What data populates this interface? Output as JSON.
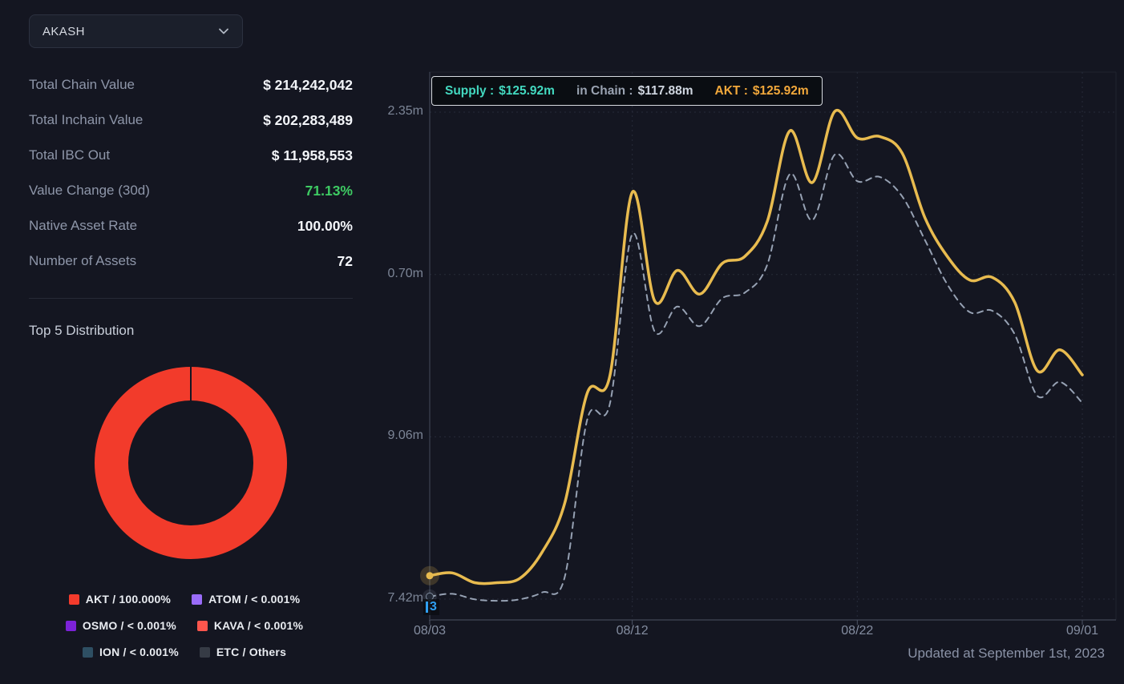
{
  "asset_selector": {
    "selected": "AKASH"
  },
  "stats": [
    {
      "label": "Total Chain Value",
      "value": "$ 214,242,042",
      "value_color": "#f3f5f9"
    },
    {
      "label": "Total Inchain Value",
      "value": "$ 202,283,489",
      "value_color": "#f3f5f9"
    },
    {
      "label": "Total IBC Out",
      "value": "$ 11,958,553",
      "value_color": "#f3f5f9"
    },
    {
      "label": "Value Change (30d)",
      "value": "71.13%",
      "value_color": "#3ecb63"
    },
    {
      "label": "Native Asset Rate",
      "value": "100.00%",
      "value_color": "#f3f5f9"
    },
    {
      "label": "Number of Assets",
      "value": "72",
      "value_color": "#f3f5f9"
    }
  ],
  "distribution": {
    "title": "Top 5 Distribution",
    "donut_color": "#f23b2b",
    "legend": [
      {
        "label": "AKT / 100.000%",
        "color": "#f43b2c"
      },
      {
        "label": "ATOM / < 0.001%",
        "color": "#9a6cf9"
      },
      {
        "label": "OSMO / < 0.001%",
        "color": "#7c22d8"
      },
      {
        "label": "KAVA / < 0.001%",
        "color": "#fd564d"
      },
      {
        "label": "ION / < 0.001%",
        "color": "#2e4f63"
      },
      {
        "label": "ETC / Others",
        "color": "#363b45"
      }
    ]
  },
  "tooltip": {
    "items": [
      {
        "label": "Supply :",
        "value": "$125.92m",
        "label_color": "#43d9c0",
        "value_color": "#43d9c0"
      },
      {
        "label": "in Chain :",
        "value": "$117.88m",
        "label_color": "#9aa3b2",
        "value_color": "#cfd6e0"
      },
      {
        "label": "AKT :",
        "value": "$125.92m",
        "label_color": "#f2a83b",
        "value_color": "#f2a83b"
      }
    ]
  },
  "chart_data": {
    "type": "line",
    "x": [
      "08/03",
      "08/04",
      "08/05",
      "08/06",
      "08/07",
      "08/08",
      "08/09",
      "08/10",
      "08/11",
      "08/12",
      "08/13",
      "08/14",
      "08/15",
      "08/16",
      "08/17",
      "08/18",
      "08/19",
      "08/20",
      "08/21",
      "08/22",
      "08/23",
      "08/24",
      "08/25",
      "08/26",
      "08/27",
      "08/28",
      "08/29",
      "08/30",
      "08/31",
      "09/01"
    ],
    "x_tick_labels": [
      "08/03",
      "08/12",
      "08/22",
      "09/01"
    ],
    "x_tick_indices": [
      0,
      9,
      19,
      29
    ],
    "y_ticks": [
      {
        "value": 122.35,
        "label": "2.35m"
      },
      {
        "value": 110.7,
        "label": "0.70m"
      },
      {
        "value": 99.06,
        "label": "9.06m"
      },
      {
        "value": 87.42,
        "label": "7.42m"
      }
    ],
    "ylim": [
      87.42,
      122.35
    ],
    "unit": "$m",
    "grid": "dotted",
    "series": [
      {
        "name": "Supply / AKT",
        "color": "#e8bb4f",
        "dash": "solid",
        "values": [
          89.1,
          89.3,
          88.6,
          88.6,
          88.9,
          90.8,
          94.3,
          102.2,
          103.4,
          116.6,
          108.8,
          111.0,
          109.3,
          111.5,
          112.0,
          114.5,
          121.0,
          117.3,
          122.4,
          120.5,
          120.6,
          119.4,
          114.8,
          112.0,
          110.3,
          110.5,
          108.7,
          103.8,
          105.3,
          103.5
        ]
      },
      {
        "name": "in Chain",
        "color": "#96a1b3",
        "dash": "dashed",
        "values": [
          87.6,
          87.8,
          87.4,
          87.3,
          87.4,
          87.9,
          89.0,
          100.3,
          101.4,
          113.6,
          106.6,
          108.4,
          107.0,
          109.0,
          109.4,
          111.4,
          117.9,
          114.6,
          119.3,
          117.4,
          117.7,
          116.3,
          113.2,
          110.0,
          108.0,
          108.1,
          106.4,
          102.0,
          103.0,
          101.5
        ]
      }
    ],
    "axis_pointer": {
      "label": "3",
      "color": "#2f9ff2",
      "x_index": 0
    }
  },
  "footer": {
    "updated_text": "Updated at September 1st, 2023"
  }
}
